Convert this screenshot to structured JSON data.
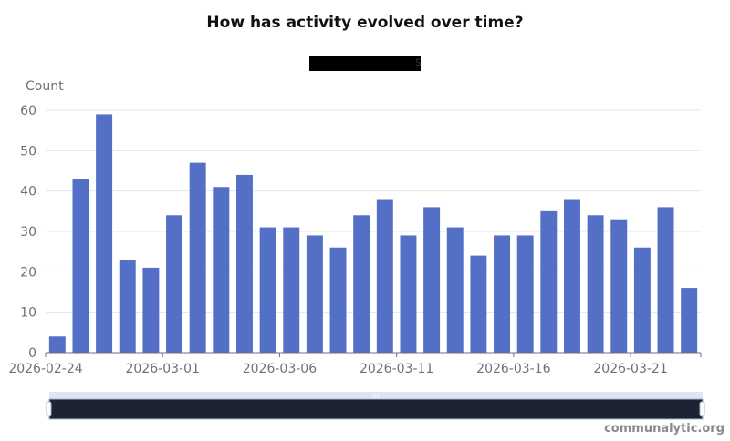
{
  "chart_data": {
    "type": "bar",
    "title": "How has activity evolved over time?",
    "ylabel": "Count",
    "xlabel": "",
    "ylim": [
      0,
      60
    ],
    "yticks": [
      0,
      10,
      20,
      30,
      40,
      50,
      60
    ],
    "xtick_labels": [
      "2026-02-24",
      "2026-03-01",
      "2026-03-06",
      "2026-03-11",
      "2026-03-16",
      "2026-03-21"
    ],
    "grid": true,
    "legend": "top-center (redacted)",
    "bar_color": "#5470c6",
    "categories": [
      "2026-02-24",
      "2026-02-25",
      "2026-02-26",
      "2026-02-27",
      "2026-02-28",
      "2026-03-01",
      "2026-03-02",
      "2026-03-03",
      "2026-03-04",
      "2026-03-05",
      "2026-03-06",
      "2026-03-07",
      "2026-03-08",
      "2026-03-09",
      "2026-03-10",
      "2026-03-11",
      "2026-03-12",
      "2026-03-13",
      "2026-03-14",
      "2026-03-15",
      "2026-03-16",
      "2026-03-17",
      "2026-03-18",
      "2026-03-19",
      "2026-03-20",
      "2026-03-21",
      "2026-03-22",
      "2026-03-23"
    ],
    "values": [
      4,
      43,
      59,
      23,
      21,
      34,
      47,
      41,
      44,
      31,
      31,
      29,
      26,
      34,
      38,
      29,
      36,
      31,
      24,
      29,
      29,
      35,
      38,
      34,
      33,
      26,
      36,
      16
    ]
  },
  "zoom_slider": {
    "start_percent": 0,
    "end_percent": 100
  },
  "branding": "communalytic.org"
}
